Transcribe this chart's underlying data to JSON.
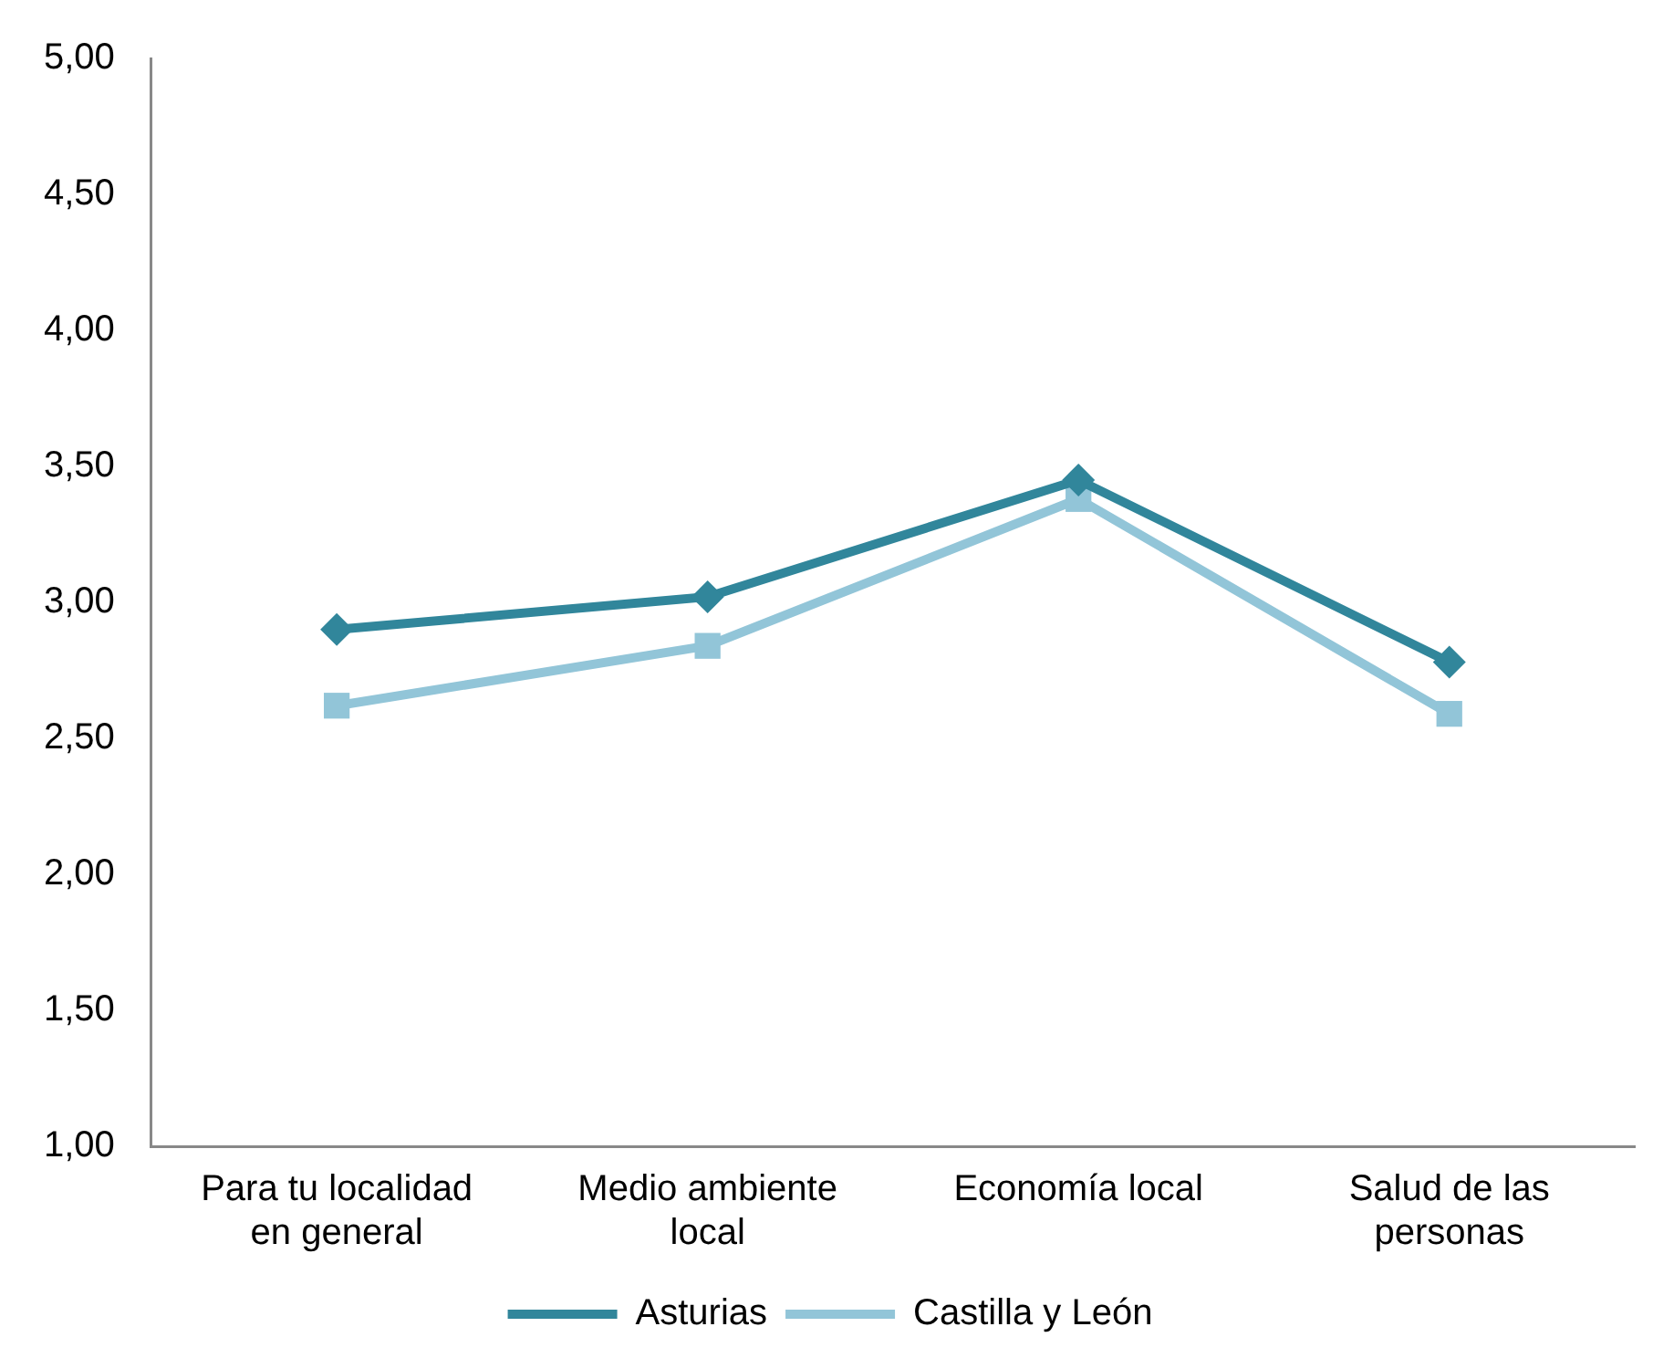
{
  "chart_data": {
    "type": "line",
    "categories": [
      "Para tu localidad en general",
      "Medio ambiente local",
      "Economía local",
      "Salud de las personas"
    ],
    "series": [
      {
        "name": "Asturias",
        "color": "#31869b",
        "values": [
          2.9,
          3.02,
          3.45,
          2.78
        ],
        "marker": "diamond"
      },
      {
        "name": "Castilla y León",
        "color": "#92c5d8",
        "values": [
          2.62,
          2.84,
          3.38,
          2.59
        ],
        "marker": "square"
      }
    ],
    "ylim": [
      1,
      5
    ],
    "yticks": [
      {
        "value": 1,
        "label": "1,00"
      },
      {
        "value": 1.5,
        "label": "1,50"
      },
      {
        "value": 2,
        "label": "2,00"
      },
      {
        "value": 2.5,
        "label": "2,50"
      },
      {
        "value": 3,
        "label": "3,00"
      },
      {
        "value": 3.5,
        "label": "3,50"
      },
      {
        "value": 4,
        "label": "4,00"
      },
      {
        "value": 4.5,
        "label": "4,50"
      },
      {
        "value": 5,
        "label": "5,00"
      }
    ],
    "grid": false,
    "legend": "bottom",
    "line_style": "solid"
  }
}
